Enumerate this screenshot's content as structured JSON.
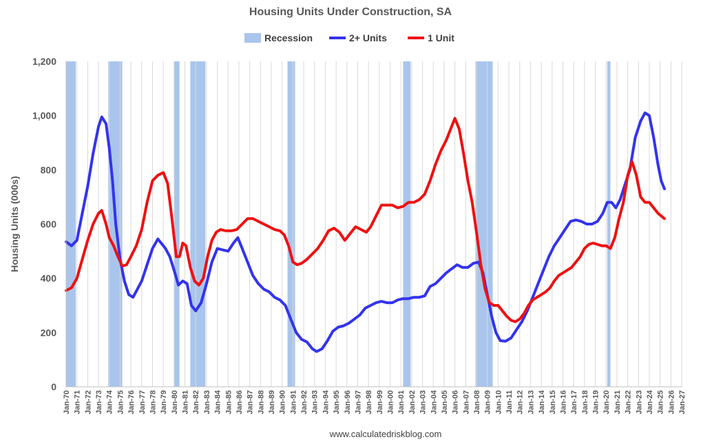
{
  "chart_data": {
    "type": "line",
    "title": "Housing Units Under Construction, SA",
    "ylabel": "Housing Units (000s)",
    "xlabel": "",
    "ylim": [
      0,
      1200
    ],
    "yticks": [
      0,
      200,
      400,
      600,
      800,
      1000,
      1200
    ],
    "ytick_labels": [
      "0",
      "200",
      "400",
      "600",
      "800",
      "1,000",
      "1,200"
    ],
    "xlim": [
      1970,
      2027
    ],
    "xtick_labels": [
      "Jan-70",
      "Jan-71",
      "Jan-72",
      "Jan-73",
      "Jan-74",
      "Jan-75",
      "Jan-76",
      "Jan-77",
      "Jan-78",
      "Jan-79",
      "Jan-80",
      "Jan-81",
      "Jan-82",
      "Jan-83",
      "Jan-84",
      "Jan-85",
      "Jan-86",
      "Jan-87",
      "Jan-88",
      "Jan-89",
      "Jan-90",
      "Jan-91",
      "Jan-92",
      "Jan-93",
      "Jan-94",
      "Jan-95",
      "Jan-96",
      "Jan-97",
      "Jan-98",
      "Jan-99",
      "Jan-00",
      "Jan-01",
      "Jan-02",
      "Jan-03",
      "Jan-04",
      "Jan-05",
      "Jan-06",
      "Jan-07",
      "Jan-08",
      "Jan-09",
      "Jan-10",
      "Jan-11",
      "Jan-12",
      "Jan-13",
      "Jan-14",
      "Jan-15",
      "Jan-16",
      "Jan-17",
      "Jan-18",
      "Jan-19",
      "Jan-20",
      "Jan-21",
      "Jan-22",
      "Jan-23",
      "Jan-24",
      "Jan-25",
      "Jan-26",
      "Jan-27"
    ],
    "grid": "vertical",
    "legend": [
      {
        "label": "Recession",
        "kind": "box",
        "color": "#a9c5ec"
      },
      {
        "label": "2+ Units",
        "kind": "line",
        "color": "#3333ee"
      },
      {
        "label": "1 Unit",
        "kind": "line",
        "color": "#ee1111"
      }
    ],
    "legend_position": "top-center",
    "recessions": [
      {
        "start": 1970.0,
        "end": 1970.9
      },
      {
        "start": 1973.9,
        "end": 1975.2
      },
      {
        "start": 1980.0,
        "end": 1980.5
      },
      {
        "start": 1981.5,
        "end": 1982.9
      },
      {
        "start": 1990.5,
        "end": 1991.2
      },
      {
        "start": 2001.2,
        "end": 2001.9
      },
      {
        "start": 2007.9,
        "end": 2009.5
      },
      {
        "start": 2020.1,
        "end": 2020.4
      }
    ],
    "series": [
      {
        "name": "2+ Units",
        "color": "#3333ee",
        "points": [
          [
            1970.0,
            535
          ],
          [
            1970.5,
            520
          ],
          [
            1971.0,
            540
          ],
          [
            1971.5,
            640
          ],
          [
            1972.0,
            740
          ],
          [
            1972.5,
            860
          ],
          [
            1973.0,
            960
          ],
          [
            1973.3,
            995
          ],
          [
            1973.7,
            970
          ],
          [
            1974.0,
            880
          ],
          [
            1974.3,
            760
          ],
          [
            1974.6,
            600
          ],
          [
            1975.0,
            470
          ],
          [
            1975.4,
            390
          ],
          [
            1975.8,
            340
          ],
          [
            1976.2,
            330
          ],
          [
            1976.6,
            360
          ],
          [
            1977.0,
            390
          ],
          [
            1977.5,
            450
          ],
          [
            1978.0,
            510
          ],
          [
            1978.5,
            545
          ],
          [
            1978.8,
            530
          ],
          [
            1979.2,
            510
          ],
          [
            1979.6,
            480
          ],
          [
            1980.0,
            430
          ],
          [
            1980.4,
            375
          ],
          [
            1980.8,
            390
          ],
          [
            1981.2,
            380
          ],
          [
            1981.6,
            300
          ],
          [
            1982.0,
            280
          ],
          [
            1982.5,
            310
          ],
          [
            1983.0,
            380
          ],
          [
            1983.5,
            460
          ],
          [
            1984.0,
            510
          ],
          [
            1984.5,
            505
          ],
          [
            1985.0,
            500
          ],
          [
            1985.5,
            530
          ],
          [
            1985.9,
            550
          ],
          [
            1986.3,
            510
          ],
          [
            1986.8,
            460
          ],
          [
            1987.3,
            410
          ],
          [
            1987.8,
            380
          ],
          [
            1988.3,
            360
          ],
          [
            1988.8,
            350
          ],
          [
            1989.3,
            330
          ],
          [
            1989.8,
            320
          ],
          [
            1990.3,
            300
          ],
          [
            1990.8,
            250
          ],
          [
            1991.3,
            200
          ],
          [
            1991.8,
            175
          ],
          [
            1992.3,
            165
          ],
          [
            1992.8,
            140
          ],
          [
            1993.2,
            130
          ],
          [
            1993.7,
            140
          ],
          [
            1994.2,
            170
          ],
          [
            1994.7,
            205
          ],
          [
            1995.2,
            220
          ],
          [
            1995.7,
            225
          ],
          [
            1996.2,
            235
          ],
          [
            1996.7,
            250
          ],
          [
            1997.2,
            265
          ],
          [
            1997.7,
            290
          ],
          [
            1998.2,
            300
          ],
          [
            1998.7,
            310
          ],
          [
            1999.2,
            315
          ],
          [
            1999.7,
            310
          ],
          [
            2000.2,
            310
          ],
          [
            2000.7,
            320
          ],
          [
            2001.2,
            325
          ],
          [
            2001.7,
            325
          ],
          [
            2002.2,
            330
          ],
          [
            2002.7,
            330
          ],
          [
            2003.2,
            335
          ],
          [
            2003.7,
            370
          ],
          [
            2004.2,
            380
          ],
          [
            2004.7,
            400
          ],
          [
            2005.2,
            420
          ],
          [
            2005.7,
            435
          ],
          [
            2006.2,
            450
          ],
          [
            2006.7,
            440
          ],
          [
            2007.2,
            440
          ],
          [
            2007.7,
            455
          ],
          [
            2008.2,
            460
          ],
          [
            2008.6,
            420
          ],
          [
            2009.0,
            340
          ],
          [
            2009.4,
            260
          ],
          [
            2009.8,
            200
          ],
          [
            2010.2,
            170
          ],
          [
            2010.7,
            168
          ],
          [
            2011.2,
            180
          ],
          [
            2011.7,
            210
          ],
          [
            2012.2,
            240
          ],
          [
            2012.7,
            280
          ],
          [
            2013.2,
            330
          ],
          [
            2013.7,
            380
          ],
          [
            2014.2,
            430
          ],
          [
            2014.7,
            480
          ],
          [
            2015.2,
            520
          ],
          [
            2015.7,
            550
          ],
          [
            2016.2,
            580
          ],
          [
            2016.7,
            610
          ],
          [
            2017.2,
            615
          ],
          [
            2017.7,
            610
          ],
          [
            2018.2,
            600
          ],
          [
            2018.7,
            600
          ],
          [
            2019.2,
            610
          ],
          [
            2019.7,
            640
          ],
          [
            2020.1,
            680
          ],
          [
            2020.5,
            680
          ],
          [
            2020.9,
            660
          ],
          [
            2021.3,
            690
          ],
          [
            2021.7,
            740
          ],
          [
            2022.2,
            800
          ],
          [
            2022.7,
            920
          ],
          [
            2023.2,
            980
          ],
          [
            2023.6,
            1010
          ],
          [
            2024.0,
            1000
          ],
          [
            2024.4,
            920
          ],
          [
            2024.8,
            820
          ],
          [
            2025.1,
            760
          ],
          [
            2025.4,
            730
          ]
        ]
      },
      {
        "name": "1 Unit",
        "color": "#ee1111",
        "points": [
          [
            1970.0,
            355
          ],
          [
            1970.5,
            365
          ],
          [
            1971.0,
            400
          ],
          [
            1971.5,
            470
          ],
          [
            1972.0,
            540
          ],
          [
            1972.5,
            600
          ],
          [
            1973.0,
            640
          ],
          [
            1973.3,
            650
          ],
          [
            1973.7,
            600
          ],
          [
            1974.0,
            550
          ],
          [
            1974.4,
            520
          ],
          [
            1974.8,
            480
          ],
          [
            1975.2,
            445
          ],
          [
            1975.6,
            450
          ],
          [
            1976.0,
            480
          ],
          [
            1976.5,
            520
          ],
          [
            1977.0,
            580
          ],
          [
            1977.5,
            680
          ],
          [
            1978.0,
            760
          ],
          [
            1978.5,
            780
          ],
          [
            1979.0,
            790
          ],
          [
            1979.4,
            750
          ],
          [
            1979.8,
            620
          ],
          [
            1980.2,
            480
          ],
          [
            1980.5,
            480
          ],
          [
            1980.8,
            530
          ],
          [
            1981.1,
            520
          ],
          [
            1981.5,
            440
          ],
          [
            1981.9,
            390
          ],
          [
            1982.3,
            375
          ],
          [
            1982.7,
            400
          ],
          [
            1983.1,
            480
          ],
          [
            1983.5,
            540
          ],
          [
            1983.9,
            570
          ],
          [
            1984.3,
            580
          ],
          [
            1984.8,
            575
          ],
          [
            1985.3,
            575
          ],
          [
            1985.8,
            580
          ],
          [
            1986.3,
            600
          ],
          [
            1986.8,
            620
          ],
          [
            1987.3,
            620
          ],
          [
            1987.8,
            610
          ],
          [
            1988.3,
            600
          ],
          [
            1988.8,
            590
          ],
          [
            1989.3,
            580
          ],
          [
            1989.8,
            575
          ],
          [
            1990.2,
            560
          ],
          [
            1990.6,
            520
          ],
          [
            1991.0,
            460
          ],
          [
            1991.4,
            450
          ],
          [
            1991.8,
            455
          ],
          [
            1992.3,
            470
          ],
          [
            1992.8,
            490
          ],
          [
            1993.3,
            510
          ],
          [
            1993.8,
            540
          ],
          [
            1994.3,
            575
          ],
          [
            1994.8,
            585
          ],
          [
            1995.3,
            570
          ],
          [
            1995.8,
            540
          ],
          [
            1996.3,
            565
          ],
          [
            1996.8,
            590
          ],
          [
            1997.3,
            580
          ],
          [
            1997.8,
            570
          ],
          [
            1998.2,
            590
          ],
          [
            1998.7,
            630
          ],
          [
            1999.2,
            670
          ],
          [
            1999.7,
            670
          ],
          [
            2000.2,
            670
          ],
          [
            2000.7,
            660
          ],
          [
            2001.2,
            665
          ],
          [
            2001.7,
            680
          ],
          [
            2002.2,
            680
          ],
          [
            2002.7,
            690
          ],
          [
            2003.2,
            710
          ],
          [
            2003.7,
            760
          ],
          [
            2004.2,
            820
          ],
          [
            2004.7,
            870
          ],
          [
            2005.2,
            910
          ],
          [
            2005.7,
            960
          ],
          [
            2006.0,
            990
          ],
          [
            2006.4,
            950
          ],
          [
            2006.8,
            860
          ],
          [
            2007.2,
            760
          ],
          [
            2007.6,
            680
          ],
          [
            2008.0,
            570
          ],
          [
            2008.4,
            450
          ],
          [
            2008.8,
            360
          ],
          [
            2009.2,
            310
          ],
          [
            2009.6,
            300
          ],
          [
            2010.0,
            300
          ],
          [
            2010.4,
            280
          ],
          [
            2010.8,
            260
          ],
          [
            2011.2,
            245
          ],
          [
            2011.6,
            240
          ],
          [
            2012.0,
            250
          ],
          [
            2012.4,
            270
          ],
          [
            2012.8,
            300
          ],
          [
            2013.2,
            320
          ],
          [
            2013.6,
            330
          ],
          [
            2014.0,
            340
          ],
          [
            2014.4,
            350
          ],
          [
            2014.8,
            365
          ],
          [
            2015.2,
            390
          ],
          [
            2015.6,
            410
          ],
          [
            2016.0,
            420
          ],
          [
            2016.4,
            430
          ],
          [
            2016.8,
            440
          ],
          [
            2017.2,
            460
          ],
          [
            2017.6,
            480
          ],
          [
            2018.0,
            510
          ],
          [
            2018.4,
            525
          ],
          [
            2018.8,
            530
          ],
          [
            2019.2,
            525
          ],
          [
            2019.6,
            520
          ],
          [
            2020.0,
            520
          ],
          [
            2020.4,
            510
          ],
          [
            2020.8,
            550
          ],
          [
            2021.2,
            620
          ],
          [
            2021.6,
            680
          ],
          [
            2022.0,
            780
          ],
          [
            2022.4,
            830
          ],
          [
            2022.8,
            780
          ],
          [
            2023.2,
            700
          ],
          [
            2023.6,
            680
          ],
          [
            2024.0,
            680
          ],
          [
            2024.4,
            660
          ],
          [
            2024.8,
            640
          ],
          [
            2025.1,
            630
          ],
          [
            2025.4,
            620
          ]
        ]
      }
    ]
  },
  "source_label": "www.calculatedriskblog.com"
}
